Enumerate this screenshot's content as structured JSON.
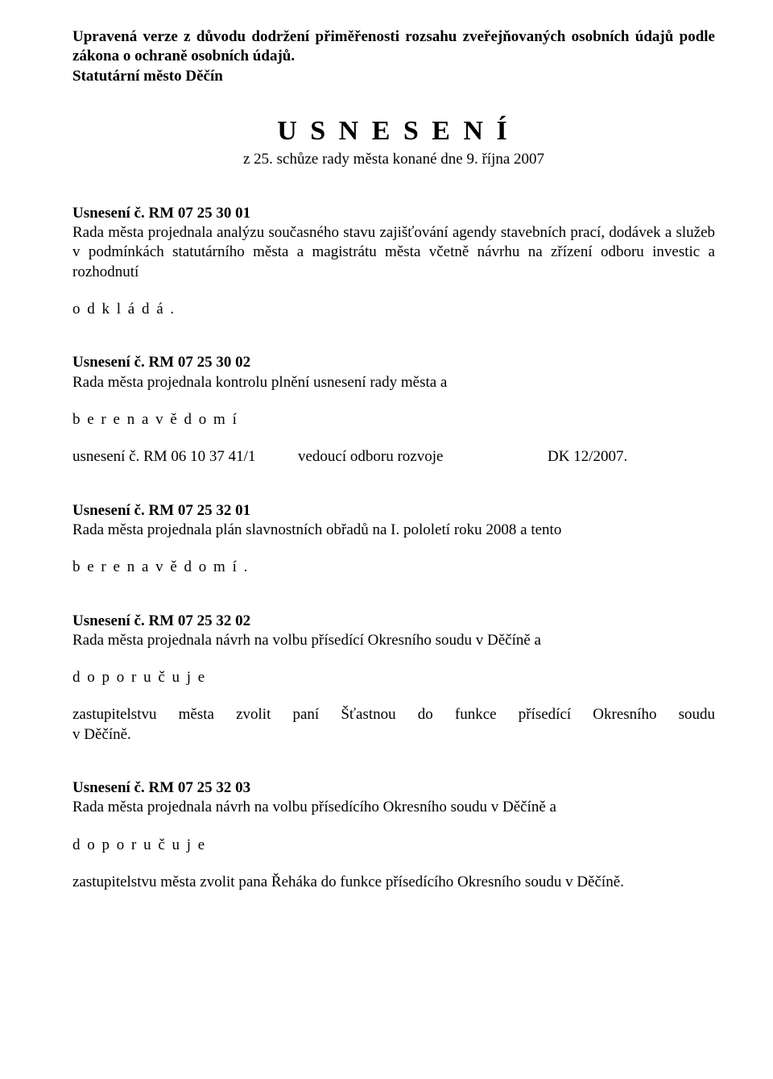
{
  "header": {
    "line1": "Upravená verze z důvodu dodržení přiměřenosti rozsahu zveřejňovaných osobních údajů podle zákona o ochraně  osobních údajů.",
    "line2": "Statutární město  Děčín"
  },
  "title": "U S N E S E N Í",
  "subtitle": "z 25.   schůze rady města konané dne  9. října   2007",
  "res1": {
    "heading": "Usnesení č. RM 07 25  30 01",
    "body": "Rada města projednala analýzu současného stavu zajišťování agendy stavebních prací, dodávek a služeb v podmínkách statutárního města a magistrátu města včetně návrhu na zřízení odboru investic  a rozhodnutí",
    "action": "o d k l á d á ."
  },
  "res2": {
    "heading": "Usnesení č. RM 07 25  30 02",
    "body": "Rada města projednala kontrolu plnění usnesení rady města a",
    "action": "b e r e     n a     v ě d o m í",
    "row": {
      "c1": "usnesení č. RM  06 10 37 41/1",
      "c2": "vedoucí odboru rozvoje",
      "c3": "DK 12/2007."
    }
  },
  "res3": {
    "heading": "Usnesení č. RM 07 25 32 01",
    "body": "Rada města projednala plán slavnostních obřadů na I. pololetí roku 2008 a tento",
    "action": "b e r e     n a     v ě d o m í ."
  },
  "res4": {
    "heading": "Usnesení č. RM 07 25 32 02",
    "body": "Rada města projednala návrh na volbu přísedící Okresního soudu v Děčíně a",
    "action": "d o p o r u č u j e",
    "para_line1": "zastupitelstvu   města   zvolit   paní   Šťastnou   do   funkce   přísedící   Okresního   soudu",
    "para_line2": "v Děčíně."
  },
  "res5": {
    "heading": "Usnesení č. RM 07 25 32 03",
    "body": "Rada města projednala návrh na volbu přísedícího Okresního soudu v Děčíně a",
    "action": "d o p o r u č u j e",
    "para": "zastupitelstvu města zvolit pana Řeháka do funkce přísedícího Okresního soudu   v Děčíně."
  }
}
